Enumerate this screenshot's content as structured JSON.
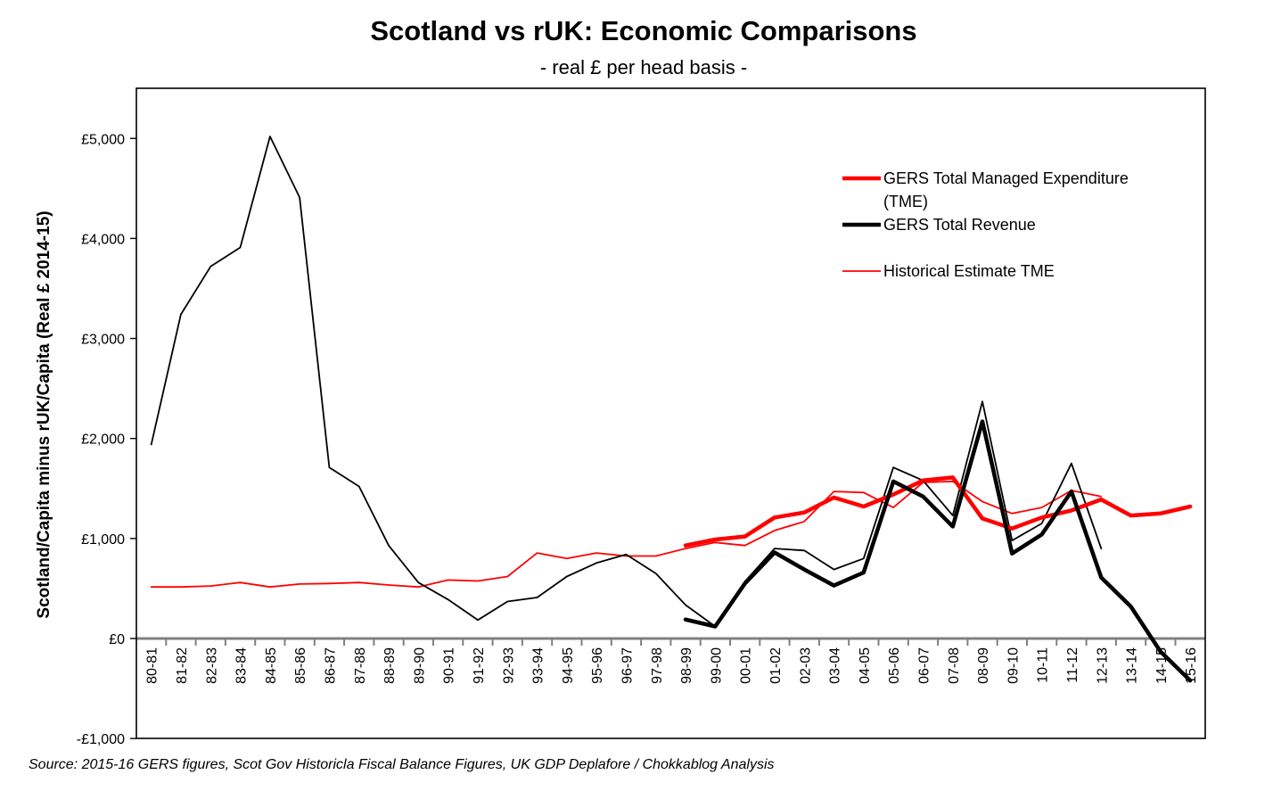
{
  "chart_data": {
    "type": "line",
    "title": "Scotland vs rUK: Economic Comparisons",
    "subtitle": "- real £ per head basis -",
    "ylabel": "Scotland/Capita minus rUK/Capita (Real £ 2014-15)",
    "xlabel": "",
    "source": "Source: 2015-16 GERS figures, Scot Gov Historicla Fiscal Balance Figures, UK GDP Deplafore / Chokkablog Analysis",
    "ylim": [
      -1000,
      5300
    ],
    "yticks": [
      -1000,
      0,
      1000,
      2000,
      3000,
      4000,
      5000
    ],
    "ytick_labels": [
      "-£1,000",
      "£0",
      "£1,000",
      "£2,000",
      "£3,000",
      "£4,000",
      "£5,000"
    ],
    "categories": [
      "80-81",
      "81-82",
      "82-83",
      "83-84",
      "84-85",
      "85-86",
      "86-87",
      "87-88",
      "88-89",
      "89-90",
      "90-91",
      "91-92",
      "92-93",
      "93-94",
      "94-95",
      "95-96",
      "96-97",
      "97-98",
      "98-99",
      "99-00",
      "00-01",
      "01-02",
      "02-03",
      "03-04",
      "04-05",
      "05-06",
      "06-07",
      "07-08",
      "08-09",
      "09-10",
      "10-11",
      "11-12",
      "12-13",
      "13-14",
      "14-15",
      "15-16"
    ],
    "series": [
      {
        "name": "GERS Total Managed Expenditure (TME)",
        "legend_lines": [
          "GERS Total Managed Expenditure",
          "(TME)"
        ],
        "color": "#ff0000",
        "weight": "thick",
        "in_legend": true,
        "values": [
          null,
          null,
          null,
          null,
          null,
          null,
          null,
          null,
          null,
          null,
          null,
          null,
          null,
          null,
          null,
          null,
          null,
          null,
          930,
          990,
          1020,
          1210,
          1260,
          1410,
          1320,
          1440,
          1580,
          1610,
          1200,
          1100,
          1210,
          1280,
          1390,
          1230,
          1250,
          1320
        ]
      },
      {
        "name": "GERS Total Revenue",
        "legend_lines": [
          "GERS Total Revenue"
        ],
        "color": "#000000",
        "weight": "thick",
        "in_legend": true,
        "values": [
          null,
          null,
          null,
          null,
          null,
          null,
          null,
          null,
          null,
          null,
          null,
          null,
          null,
          null,
          null,
          null,
          null,
          null,
          190,
          120,
          550,
          860,
          690,
          530,
          660,
          1570,
          1420,
          1120,
          2170,
          850,
          1040,
          1470,
          610,
          320,
          -130,
          -420
        ]
      },
      {
        "name": "Historical Estimate TME",
        "legend_lines": [
          "Historical Estimate TME"
        ],
        "color": "#ff0000",
        "weight": "thin",
        "in_legend": true,
        "values": [
          515,
          515,
          525,
          560,
          515,
          545,
          550,
          560,
          535,
          515,
          585,
          575,
          620,
          855,
          800,
          855,
          825,
          825,
          900,
          960,
          930,
          1080,
          1170,
          1470,
          1460,
          1310,
          1560,
          1570,
          1370,
          1250,
          1310,
          1480,
          1420,
          null,
          null,
          null
        ]
      },
      {
        "name": "Historical Estimate Revenue",
        "legend_lines": [],
        "color": "#000000",
        "weight": "thin",
        "in_legend": false,
        "values": [
          1940,
          3240,
          3720,
          3910,
          5020,
          4410,
          1710,
          1520,
          930,
          560,
          390,
          185,
          370,
          410,
          620,
          755,
          840,
          650,
          335,
          120,
          570,
          900,
          880,
          690,
          800,
          1710,
          1580,
          1230,
          2370,
          980,
          1150,
          1750,
          900,
          null,
          null,
          null
        ]
      }
    ]
  }
}
